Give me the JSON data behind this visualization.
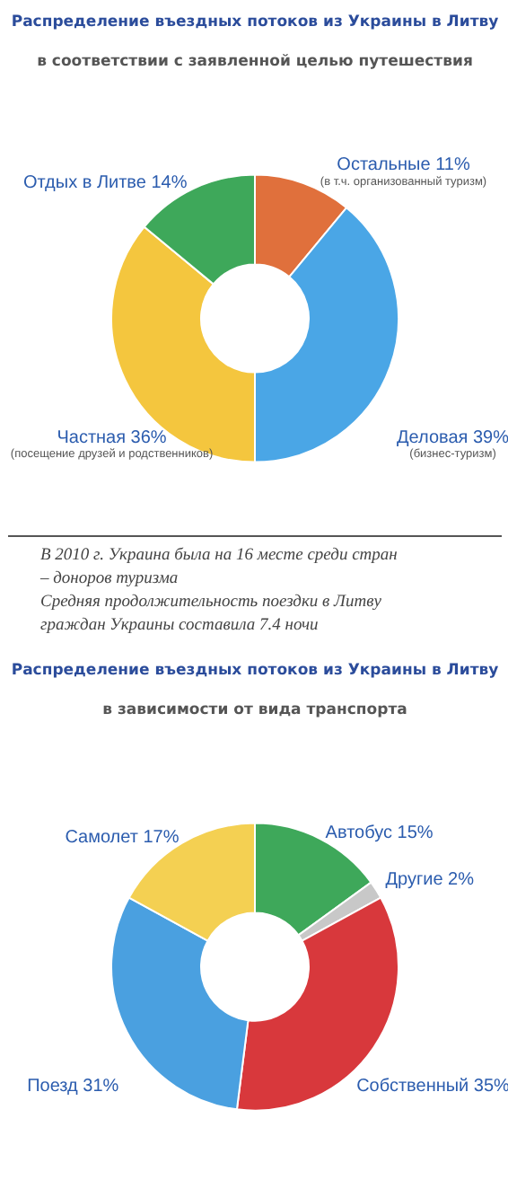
{
  "chart_data": [
    {
      "type": "donut",
      "title": "Распределение въездных потоков из Украины в Литву",
      "subtitle": "в соответствии с заявленной целью путешествия",
      "categories": [
        "Остальные",
        "Деловая",
        "Частная",
        "Отдых в Литве"
      ],
      "values": [
        11,
        39,
        36,
        14
      ],
      "value_labels": [
        "11%",
        "39%",
        "36%",
        "14%"
      ],
      "colors": [
        "#e0703c",
        "#4aa6e6",
        "#f4c63e",
        "#3ea85a"
      ],
      "annotations": [
        {
          "text": "(в т.ч. организованный туризм)",
          "x": "Остальные"
        },
        {
          "text": "(бизнес-туризм)",
          "x": "Деловая"
        },
        {
          "text": "(посещение друзей и родственников)",
          "x": "Частная"
        }
      ]
    },
    {
      "type": "other",
      "annotations": [
        "В 2010 г. Украина была на 16 месте среди стран – доноров туризма",
        "Средняя продолжительность поездки в Литву граждан Украины составила 7.4 ночи"
      ]
    },
    {
      "type": "donut",
      "title": "Распределение въездных потоков из Украины в Литву",
      "subtitle": "в зависимости от вида транспорта",
      "categories": [
        "Автобус",
        "Другие",
        "Собственный",
        "Поезд",
        "Самолет"
      ],
      "values": [
        15,
        2,
        35,
        31,
        17
      ],
      "value_labels": [
        "15%",
        "2%",
        "35%",
        "31%",
        "17%"
      ],
      "colors": [
        "#3ea85a",
        "#c8c8c8",
        "#d8383c",
        "#4aa0e0",
        "#f4d052"
      ]
    }
  ]
}
